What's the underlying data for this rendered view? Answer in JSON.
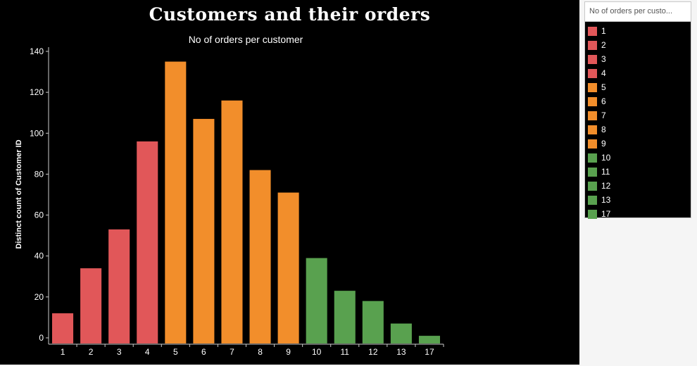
{
  "dashboard": {
    "title": "Customers and their orders"
  },
  "legend": {
    "header": "No of orders per custo...",
    "items": [
      {
        "label": "1",
        "color": "#e15759"
      },
      {
        "label": "2",
        "color": "#e15759"
      },
      {
        "label": "3",
        "color": "#e15759"
      },
      {
        "label": "4",
        "color": "#e15759"
      },
      {
        "label": "5",
        "color": "#f28e2b"
      },
      {
        "label": "6",
        "color": "#f28e2b"
      },
      {
        "label": "7",
        "color": "#f28e2b"
      },
      {
        "label": "8",
        "color": "#f28e2b"
      },
      {
        "label": "9",
        "color": "#f28e2b"
      },
      {
        "label": "10",
        "color": "#59a14f"
      },
      {
        "label": "11",
        "color": "#59a14f"
      },
      {
        "label": "12",
        "color": "#59a14f"
      },
      {
        "label": "13",
        "color": "#59a14f"
      },
      {
        "label": "17",
        "color": "#59a14f"
      }
    ]
  },
  "chart_data": {
    "type": "bar",
    "title": "No of orders per customer",
    "xlabel": "",
    "ylabel": "Distinct count of Customer ID",
    "categories": [
      "1",
      "2",
      "3",
      "4",
      "5",
      "6",
      "7",
      "8",
      "9",
      "10",
      "11",
      "12",
      "13",
      "17"
    ],
    "values": [
      12,
      34,
      53,
      96,
      135,
      107,
      116,
      82,
      71,
      39,
      23,
      18,
      7,
      1
    ],
    "colors": [
      "#e15759",
      "#e15759",
      "#e15759",
      "#e15759",
      "#f28e2b",
      "#f28e2b",
      "#f28e2b",
      "#f28e2b",
      "#f28e2b",
      "#59a14f",
      "#59a14f",
      "#59a14f",
      "#59a14f",
      "#59a14f"
    ],
    "ylim": [
      0,
      140
    ],
    "yticks": [
      0,
      20,
      40,
      60,
      80,
      100,
      120,
      140
    ],
    "grid": false,
    "legend_position": "right"
  }
}
